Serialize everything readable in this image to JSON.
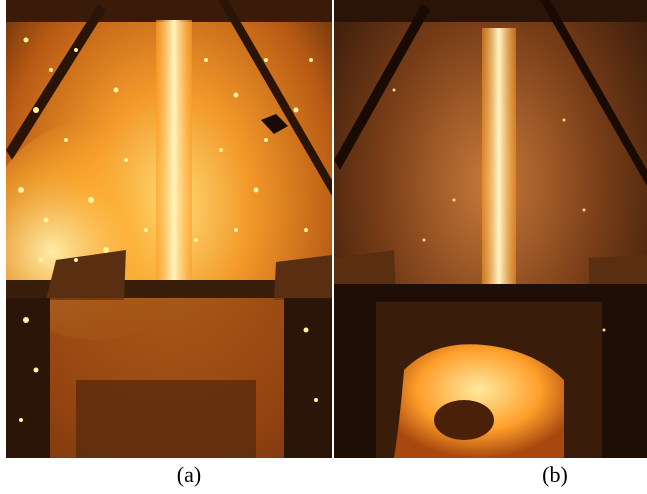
{
  "figure": {
    "panels": [
      {
        "id": "a",
        "caption": "(a)"
      },
      {
        "id": "b",
        "caption": "(b)"
      }
    ]
  },
  "colors": {
    "molten_core": "#fff4b0",
    "molten_glow": "#ffb22e",
    "ambient_orange": "#d8731c",
    "dark_frame": "#2a1408",
    "background": "#ffffff"
  }
}
